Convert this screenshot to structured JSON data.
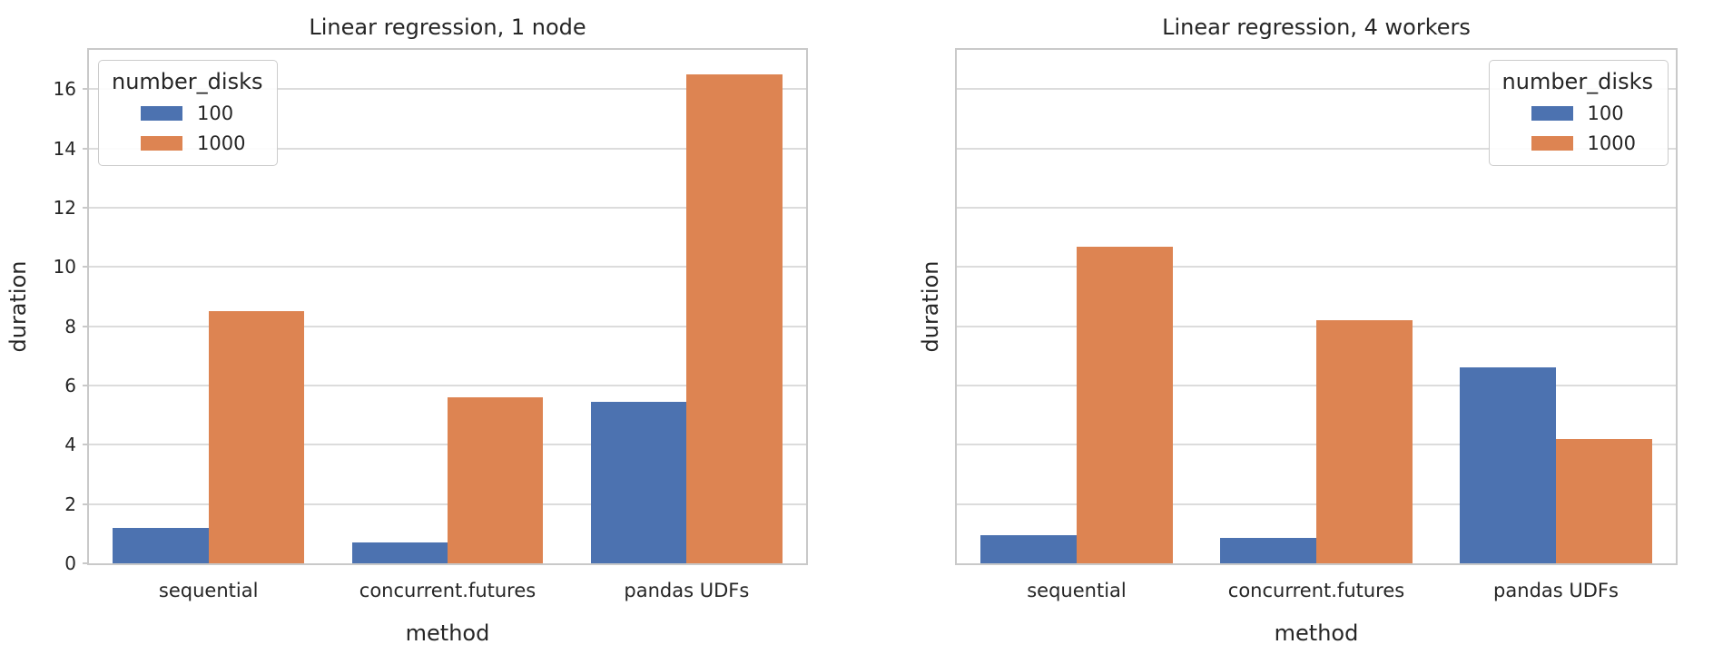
{
  "figure": {
    "background": "#ffffff",
    "grid_color": "#dcdcdc",
    "spine_color": "#c9c9c9",
    "text_color": "#262626"
  },
  "legend": {
    "title": "number_disks",
    "entries": [
      {
        "label": "100",
        "color": "#4C72B0"
      },
      {
        "label": "1000",
        "color": "#DD8452"
      }
    ]
  },
  "chart_data": [
    {
      "type": "bar",
      "title": "Linear regression, 1 node",
      "xlabel": "method",
      "ylabel": "duration",
      "categories": [
        "sequential",
        "concurrent.futures",
        "pandas UDFs"
      ],
      "series": [
        {
          "name": "100",
          "color": "#4C72B0",
          "values": [
            1.2,
            0.7,
            5.45
          ]
        },
        {
          "name": "1000",
          "color": "#DD8452",
          "values": [
            8.5,
            5.6,
            16.5
          ]
        }
      ],
      "ylim": [
        0,
        17.33
      ],
      "yticks": [
        0,
        2,
        4,
        6,
        8,
        10,
        12,
        14,
        16
      ],
      "show_ytick_labels": true,
      "grid": true,
      "legend_title": "number_disks",
      "legend_position": "upper-left"
    },
    {
      "type": "bar",
      "title": "Linear regression, 4 workers",
      "xlabel": "method",
      "ylabel": "duration",
      "categories": [
        "sequential",
        "concurrent.futures",
        "pandas UDFs"
      ],
      "series": [
        {
          "name": "100",
          "color": "#4C72B0",
          "values": [
            0.95,
            0.85,
            6.6
          ]
        },
        {
          "name": "1000",
          "color": "#DD8452",
          "values": [
            10.7,
            8.2,
            4.2
          ]
        }
      ],
      "ylim": [
        0,
        17.33
      ],
      "yticks": [
        0,
        2,
        4,
        6,
        8,
        10,
        12,
        14,
        16
      ],
      "show_ytick_labels": false,
      "grid": true,
      "legend_title": "number_disks",
      "legend_position": "upper-right"
    }
  ]
}
